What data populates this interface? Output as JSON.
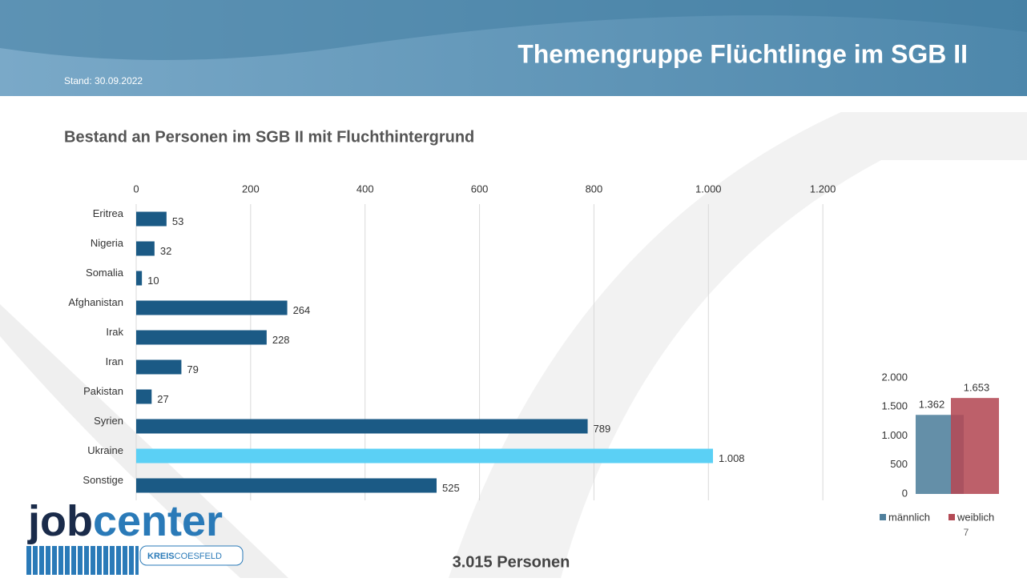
{
  "slide": {
    "title": "Themengruppe Flüchtlinge im SGB II",
    "date": "Stand: 30.09.2022",
    "total": "3.015 Personen",
    "page": "7",
    "logo": {
      "part1": "job",
      "part2": "center",
      "kreis": "KREIS",
      "district": "COESFELD"
    }
  },
  "chart_data": [
    {
      "type": "hbar",
      "title": "Bestand an Personen im SGB II mit Fluchthintergrund",
      "categories": [
        "Eritrea",
        "Nigeria",
        "Somalia",
        "Afghanistan",
        "Irak",
        "Iran",
        "Pakistan",
        "Syrien",
        "Ukraine",
        "Sonstige"
      ],
      "values": [
        53,
        32,
        10,
        264,
        228,
        79,
        27,
        789,
        1008,
        525
      ],
      "value_labels": [
        "53",
        "32",
        "10",
        "264",
        "228",
        "79",
        "27",
        "789",
        "1.008",
        "525"
      ],
      "colors": [
        "#1b5a85",
        "#1b5a85",
        "#1b5a85",
        "#1b5a85",
        "#1b5a85",
        "#1b5a85",
        "#1b5a85",
        "#1b5a85",
        "#5bd0f5",
        "#1b5a85"
      ],
      "xlim": [
        0,
        1400
      ],
      "xticks": [
        0,
        200,
        400,
        600,
        800,
        {
          "value": 1000,
          "label": "1.000"
        },
        {
          "value": 1200,
          "label": "1.200"
        }
      ],
      "grid": true
    },
    {
      "type": "bar",
      "categories": [
        null
      ],
      "series": [
        {
          "name": "männlich",
          "color": "#4f7f9c",
          "values": [
            1362
          ],
          "value_labels": [
            "1.362"
          ]
        },
        {
          "name": "weiblich",
          "color": "#b44a55",
          "values": [
            1653
          ],
          "value_labels": [
            "1.653"
          ]
        }
      ],
      "ylim": [
        0,
        2000
      ],
      "yticks": [
        0,
        500,
        {
          "value": 1000,
          "label": "1.000"
        },
        {
          "value": 1500,
          "label": "1.500"
        },
        {
          "value": 2000,
          "label": "2.000"
        }
      ],
      "legend": "bottom"
    }
  ]
}
